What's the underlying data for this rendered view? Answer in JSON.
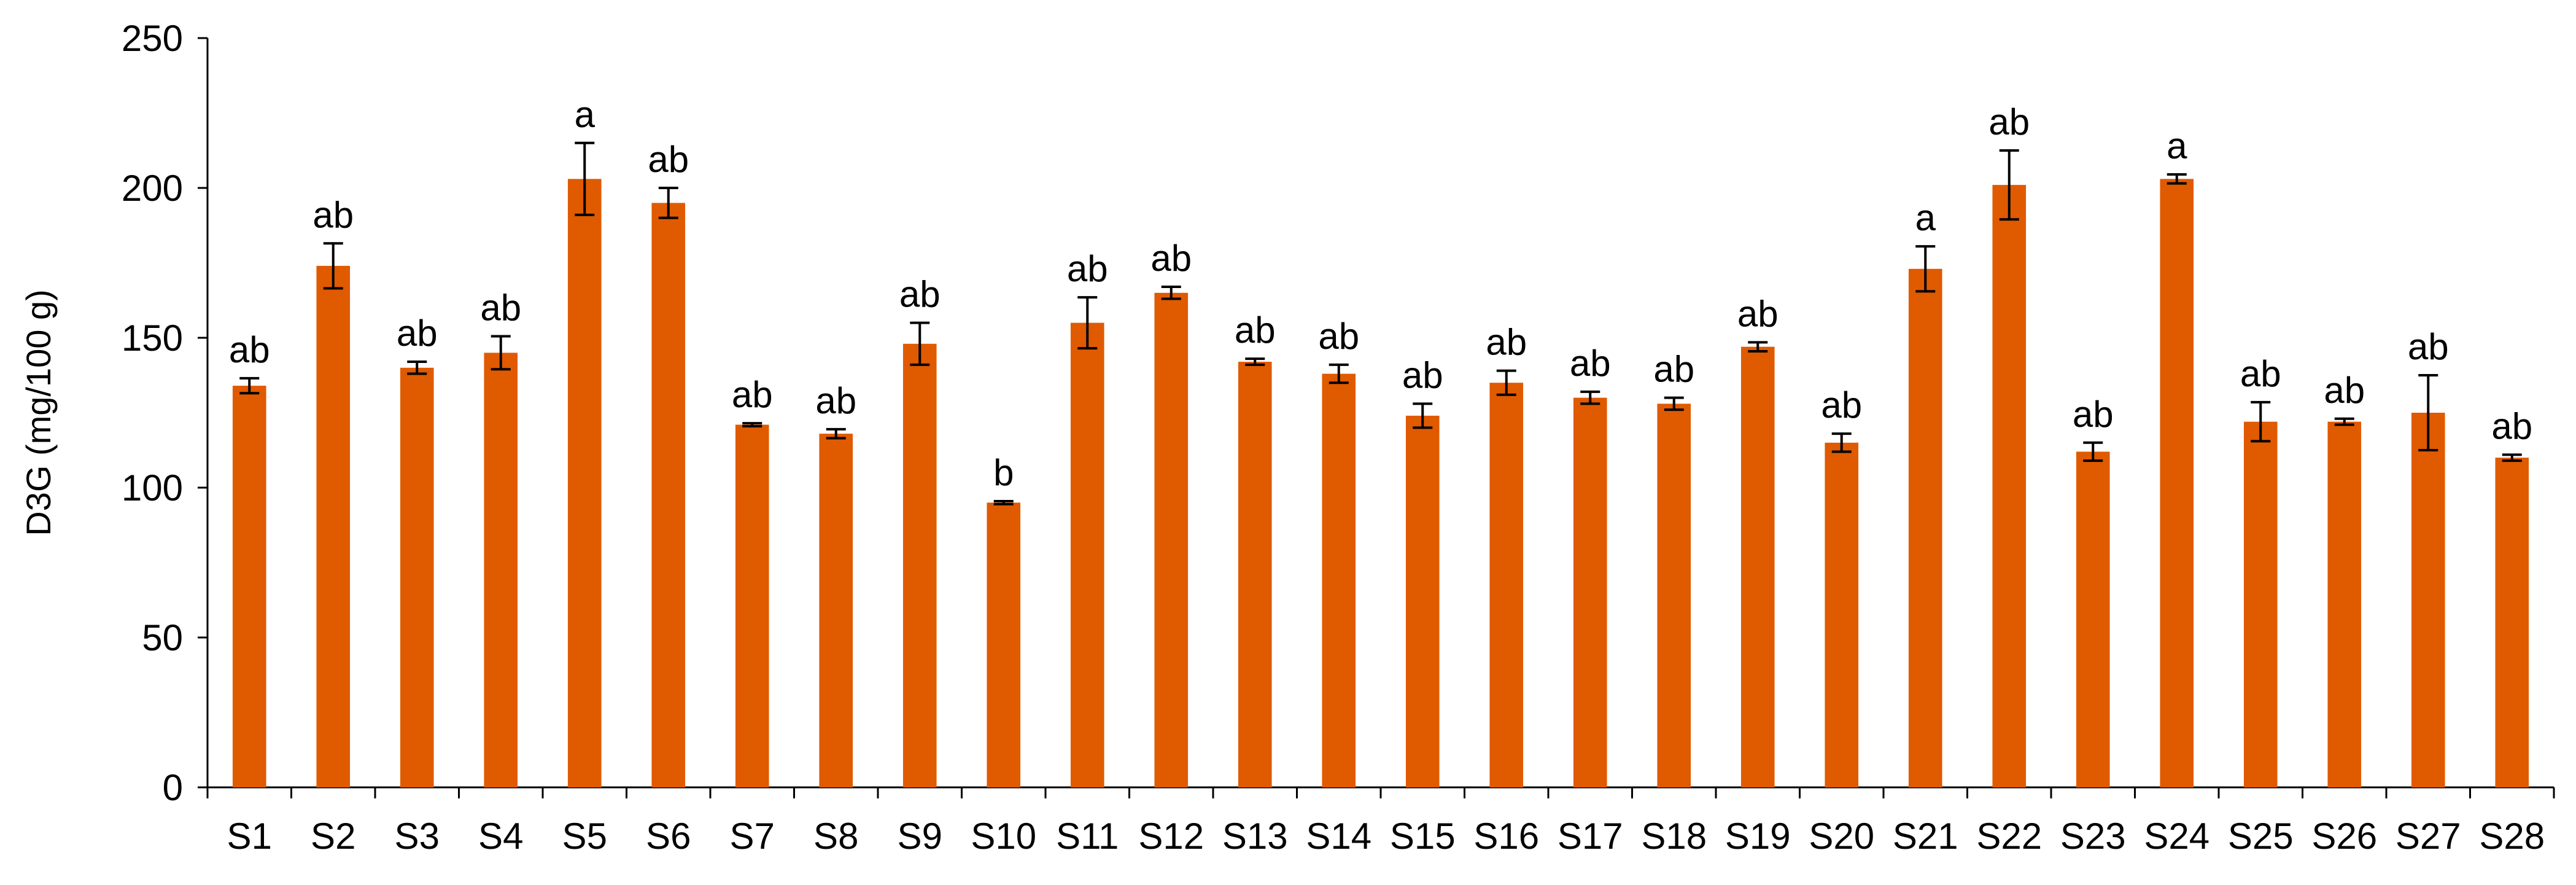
{
  "chart_data": {
    "type": "bar",
    "title": "",
    "xlabel": "",
    "ylabel": "D3G (mg/100 g)",
    "ylim": [
      0,
      250
    ],
    "yticks": [
      0,
      50,
      100,
      150,
      200,
      250
    ],
    "grid": false,
    "legend": "none",
    "categories": [
      "S1",
      "S2",
      "S3",
      "S4",
      "S5",
      "S6",
      "S7",
      "S8",
      "S9",
      "S10",
      "S11",
      "S12",
      "S13",
      "S14",
      "S15",
      "S16",
      "S17",
      "S18",
      "S19",
      "S20",
      "S21",
      "S22",
      "S23",
      "S24",
      "S25",
      "S26",
      "S27",
      "S28"
    ],
    "series": [
      {
        "values": [
          134,
          174,
          140,
          145,
          203,
          195,
          121,
          118,
          148,
          95,
          155,
          165,
          142,
          138,
          124,
          135,
          130,
          128,
          147,
          115,
          173,
          201,
          112,
          203,
          122,
          122,
          125,
          110
        ],
        "errors": [
          2.5,
          7.5,
          2.0,
          5.5,
          12.0,
          5.0,
          0.5,
          1.5,
          7.0,
          0.5,
          8.5,
          2.0,
          1.0,
          3.0,
          4.0,
          4.0,
          2.0,
          2.0,
          1.5,
          3.0,
          7.5,
          11.5,
          3.0,
          1.5,
          6.5,
          1.0,
          12.5,
          1.0
        ],
        "color": "#e05a00"
      }
    ],
    "significance_labels": [
      "ab",
      "ab",
      "ab",
      "ab",
      "a",
      "ab",
      "ab",
      "ab",
      "ab",
      "b",
      "ab",
      "ab",
      "ab",
      "ab",
      "ab",
      "ab",
      "ab",
      "ab",
      "ab",
      "ab",
      "a",
      "ab",
      "ab",
      "a",
      "ab",
      "ab",
      "ab",
      "ab"
    ]
  }
}
